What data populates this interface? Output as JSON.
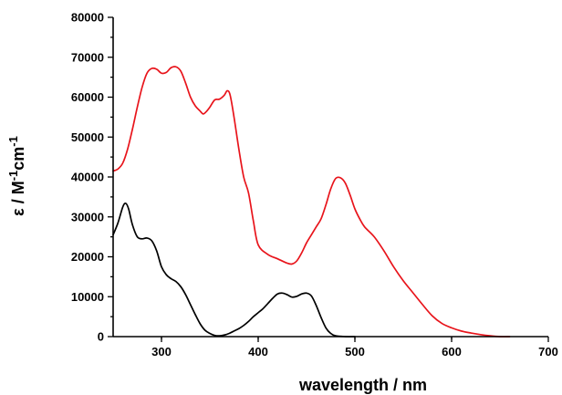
{
  "chart_data": {
    "type": "line",
    "title": "",
    "xlabel": "wavelength / nm",
    "ylabel": {
      "prefix": "ε / M",
      "sup1": "-1",
      "mid": "cm",
      "sup2": "-1"
    },
    "xlim": [
      250,
      700
    ],
    "ylim": [
      0,
      80000
    ],
    "x_ticks": [
      300,
      400,
      500,
      600,
      700
    ],
    "y_ticks": [
      0,
      10000,
      20000,
      30000,
      40000,
      50000,
      60000,
      70000,
      80000
    ],
    "grid": false,
    "legend": "none",
    "series": [
      {
        "color": "#e8141b",
        "points": [
          [
            250,
            41500
          ],
          [
            255,
            42000
          ],
          [
            260,
            43500
          ],
          [
            265,
            47000
          ],
          [
            270,
            52000
          ],
          [
            275,
            57500
          ],
          [
            280,
            62500
          ],
          [
            285,
            66000
          ],
          [
            290,
            67200
          ],
          [
            295,
            67000
          ],
          [
            300,
            66000
          ],
          [
            305,
            66200
          ],
          [
            310,
            67400
          ],
          [
            315,
            67600
          ],
          [
            320,
            66500
          ],
          [
            325,
            63500
          ],
          [
            330,
            60000
          ],
          [
            335,
            57800
          ],
          [
            340,
            56500
          ],
          [
            343,
            55800
          ],
          [
            346,
            56300
          ],
          [
            350,
            57500
          ],
          [
            355,
            59300
          ],
          [
            360,
            59500
          ],
          [
            365,
            60500
          ],
          [
            368,
            61600
          ],
          [
            371,
            60500
          ],
          [
            375,
            55000
          ],
          [
            380,
            47000
          ],
          [
            385,
            40000
          ],
          [
            390,
            36000
          ],
          [
            395,
            29000
          ],
          [
            400,
            23000
          ],
          [
            410,
            20600
          ],
          [
            420,
            19500
          ],
          [
            430,
            18400
          ],
          [
            435,
            18200
          ],
          [
            440,
            19000
          ],
          [
            445,
            21000
          ],
          [
            450,
            23500
          ],
          [
            455,
            25500
          ],
          [
            460,
            27500
          ],
          [
            465,
            29500
          ],
          [
            470,
            33000
          ],
          [
            475,
            37000
          ],
          [
            480,
            39600
          ],
          [
            485,
            39800
          ],
          [
            490,
            38500
          ],
          [
            495,
            35500
          ],
          [
            500,
            32000
          ],
          [
            505,
            29500
          ],
          [
            510,
            27500
          ],
          [
            520,
            25000
          ],
          [
            530,
            21500
          ],
          [
            540,
            17500
          ],
          [
            550,
            14000
          ],
          [
            560,
            11000
          ],
          [
            570,
            8000
          ],
          [
            580,
            5200
          ],
          [
            590,
            3300
          ],
          [
            600,
            2200
          ],
          [
            610,
            1400
          ],
          [
            620,
            900
          ],
          [
            630,
            500
          ],
          [
            640,
            200
          ],
          [
            650,
            0
          ],
          [
            660,
            0
          ]
        ]
      },
      {
        "color": "#000000",
        "points": [
          [
            250,
            25500
          ],
          [
            255,
            28500
          ],
          [
            260,
            32500
          ],
          [
            263,
            33400
          ],
          [
            266,
            32000
          ],
          [
            270,
            28000
          ],
          [
            275,
            25000
          ],
          [
            280,
            24500
          ],
          [
            285,
            24700
          ],
          [
            290,
            24000
          ],
          [
            295,
            21500
          ],
          [
            300,
            17500
          ],
          [
            305,
            15500
          ],
          [
            310,
            14500
          ],
          [
            315,
            13800
          ],
          [
            320,
            12500
          ],
          [
            325,
            10500
          ],
          [
            330,
            8000
          ],
          [
            335,
            5500
          ],
          [
            340,
            3200
          ],
          [
            345,
            1600
          ],
          [
            350,
            800
          ],
          [
            355,
            300
          ],
          [
            360,
            200
          ],
          [
            365,
            400
          ],
          [
            370,
            800
          ],
          [
            375,
            1400
          ],
          [
            380,
            2000
          ],
          [
            385,
            2800
          ],
          [
            390,
            3800
          ],
          [
            395,
            5000
          ],
          [
            400,
            6000
          ],
          [
            405,
            7000
          ],
          [
            410,
            8300
          ],
          [
            415,
            9600
          ],
          [
            420,
            10700
          ],
          [
            425,
            10900
          ],
          [
            430,
            10500
          ],
          [
            435,
            9900
          ],
          [
            440,
            10100
          ],
          [
            445,
            10700
          ],
          [
            450,
            10900
          ],
          [
            455,
            10200
          ],
          [
            460,
            7800
          ],
          [
            465,
            4800
          ],
          [
            470,
            2200
          ],
          [
            475,
            800
          ],
          [
            480,
            200
          ],
          [
            490,
            0
          ],
          [
            500,
            0
          ]
        ]
      }
    ]
  }
}
